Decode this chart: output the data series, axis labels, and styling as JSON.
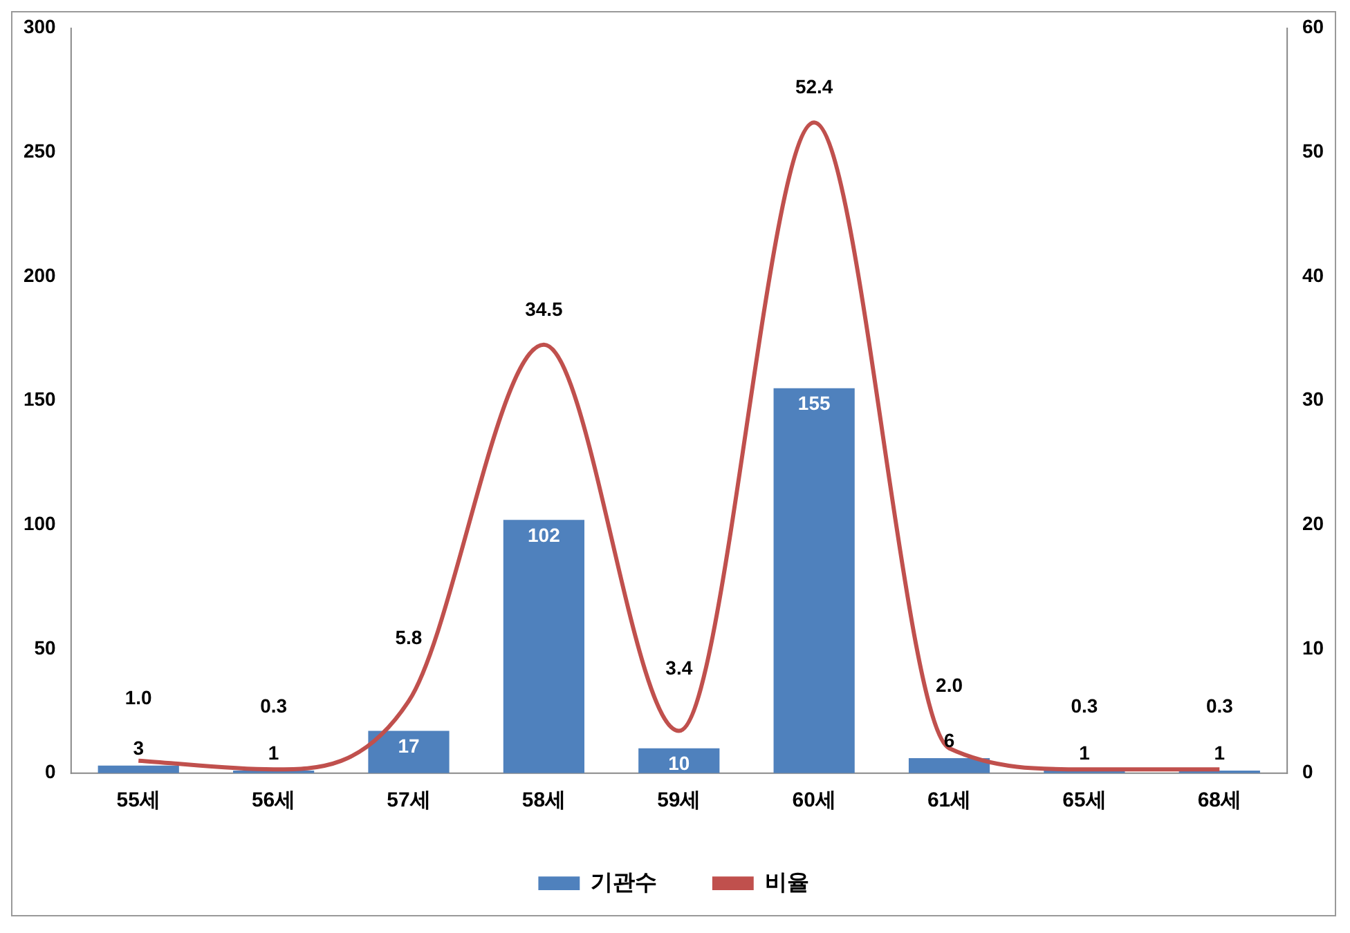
{
  "chart_data": {
    "type": "bar",
    "categories": [
      "55세",
      "56세",
      "57세",
      "58세",
      "59세",
      "60세",
      "61세",
      "65세",
      "68세"
    ],
    "series": [
      {
        "name": "기관수",
        "color": "#4f81bd",
        "values": [
          3,
          1,
          17,
          102,
          10,
          155,
          6,
          1,
          1
        ],
        "value_labels": [
          "3",
          "1",
          "17",
          "102",
          "10",
          "155",
          "6",
          "1",
          "1"
        ]
      },
      {
        "name": "비율",
        "type": "line",
        "axis": "y2",
        "color": "#c0504d",
        "values": [
          1.0,
          0.3,
          5.8,
          34.5,
          3.4,
          52.4,
          2.0,
          0.3,
          0.3
        ],
        "value_labels": [
          "1.0",
          "0.3",
          "5.8",
          "34.5",
          "3.4",
          "52.4",
          "2.0",
          "0.3",
          "0.3"
        ]
      }
    ],
    "ylim": [
      0,
      300
    ],
    "yticks": [
      0,
      50,
      100,
      150,
      200,
      250,
      300
    ],
    "y2lim": [
      0,
      60
    ],
    "y2ticks": [
      0,
      10,
      20,
      30,
      40,
      50,
      60
    ],
    "grid": false,
    "legend": "bottom",
    "marker": "none"
  }
}
